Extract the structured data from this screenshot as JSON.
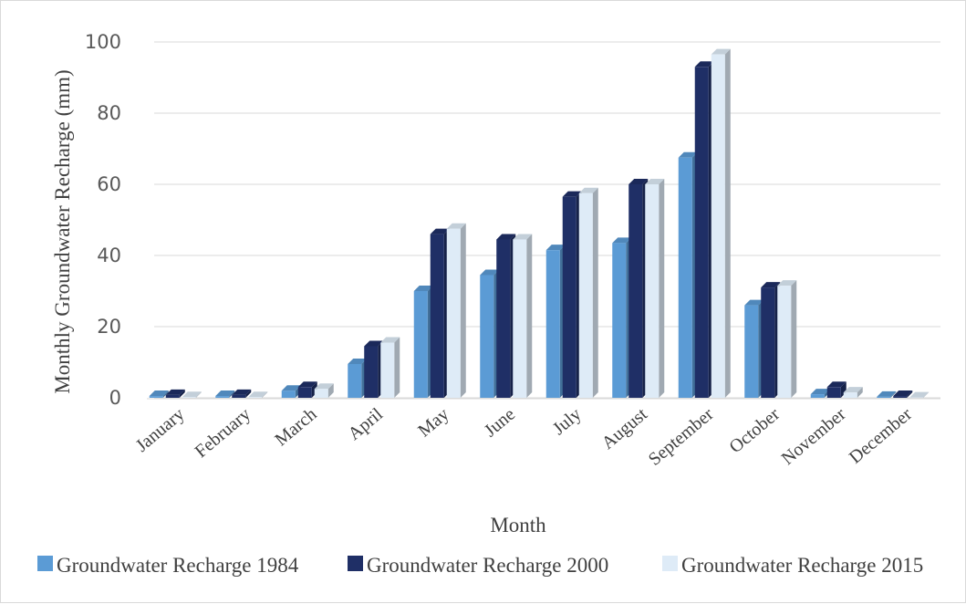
{
  "chart_data": {
    "type": "bar",
    "title": "",
    "xlabel": "Month",
    "ylabel": "Monthly Groundwater Recharge (mm)",
    "ylim": [
      0,
      100
    ],
    "yticks": [
      "0",
      "20",
      "40",
      "60",
      "80",
      "100"
    ],
    "grid": true,
    "legend_position": "bottom",
    "categories": [
      "January",
      "February",
      "March",
      "April",
      "May",
      "June",
      "July",
      "August",
      "September",
      "October",
      "November",
      "December"
    ],
    "series": [
      {
        "name": "Groundwater Recharge 1984",
        "color": "#5b9bd5",
        "values": [
          0.5,
          0.5,
          2,
          9.5,
          30,
          34.5,
          41.5,
          43.5,
          67.5,
          26,
          1,
          0.3
        ]
      },
      {
        "name": "Groundwater Recharge 2000",
        "color": "#1f2f66",
        "values": [
          0.8,
          0.8,
          3,
          14.5,
          46,
          44.5,
          56.5,
          60,
          93,
          31,
          3,
          0.5
        ]
      },
      {
        "name": "Groundwater Recharge 2015",
        "color": "#deebf7",
        "values": [
          0.2,
          0.2,
          2.5,
          15.5,
          47.5,
          44.5,
          57.5,
          60,
          96.5,
          31.5,
          1.5,
          0.1
        ]
      }
    ]
  }
}
